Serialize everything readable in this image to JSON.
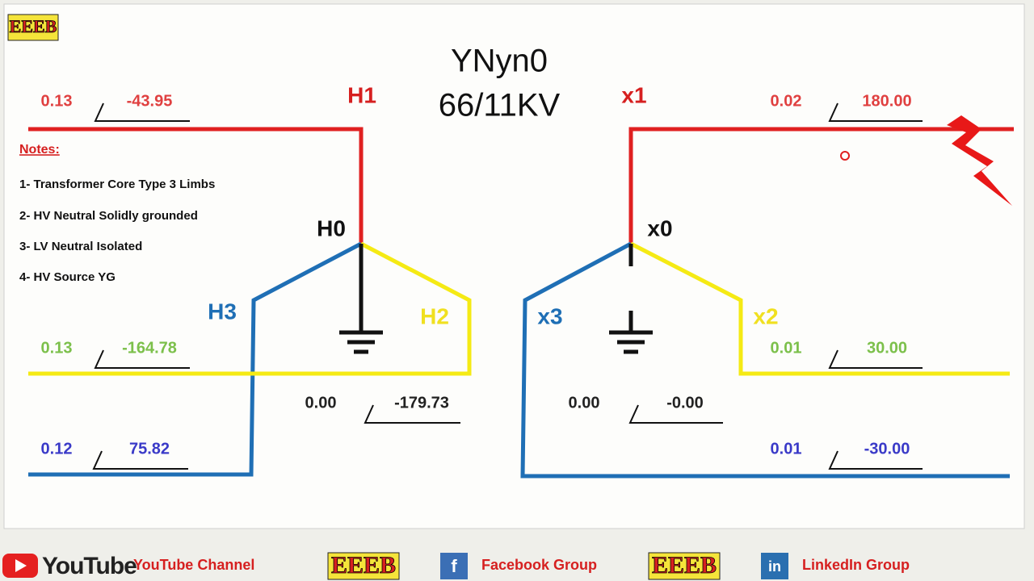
{
  "logo": "EEEB",
  "title": [
    "YNyn0",
    "66/11KV"
  ],
  "notes": {
    "heading": "Notes:",
    "items": [
      "1- Transformer Core Type 3 Limbs",
      "2- HV Neutral Solidly grounded",
      "3- LV Neutral Isolated",
      "4- HV Source YG"
    ]
  },
  "hv_labels": {
    "h1": "H1",
    "h0": "H0",
    "h2": "H2",
    "h3": "H3"
  },
  "lv_labels": {
    "x1": "x1",
    "x0": "x0",
    "x2": "x2",
    "x3": "x3"
  },
  "readings": [
    {
      "magnitude": "0.13",
      "angle": "-43.95"
    },
    {
      "magnitude": "0.13",
      "angle": "-164.78"
    },
    {
      "magnitude": "0.12",
      "angle": "75.82"
    },
    {
      "magnitude": "0.00",
      "angle": "-179.73"
    },
    {
      "magnitude": "0.00",
      "angle": "-0.00"
    },
    {
      "magnitude": "0.02",
      "angle": "180.00"
    },
    {
      "magnitude": "0.01",
      "angle": "30.00"
    },
    {
      "magnitude": "0.01",
      "angle": "-30.00"
    }
  ],
  "footer": {
    "youtube": "YouTube",
    "youtube_link": "YouTube Channel",
    "facebook_icon": "f",
    "facebook_link": "Facebook Group",
    "linkedin_icon": "in",
    "linkedin_link": "LinkedIn Group"
  }
}
